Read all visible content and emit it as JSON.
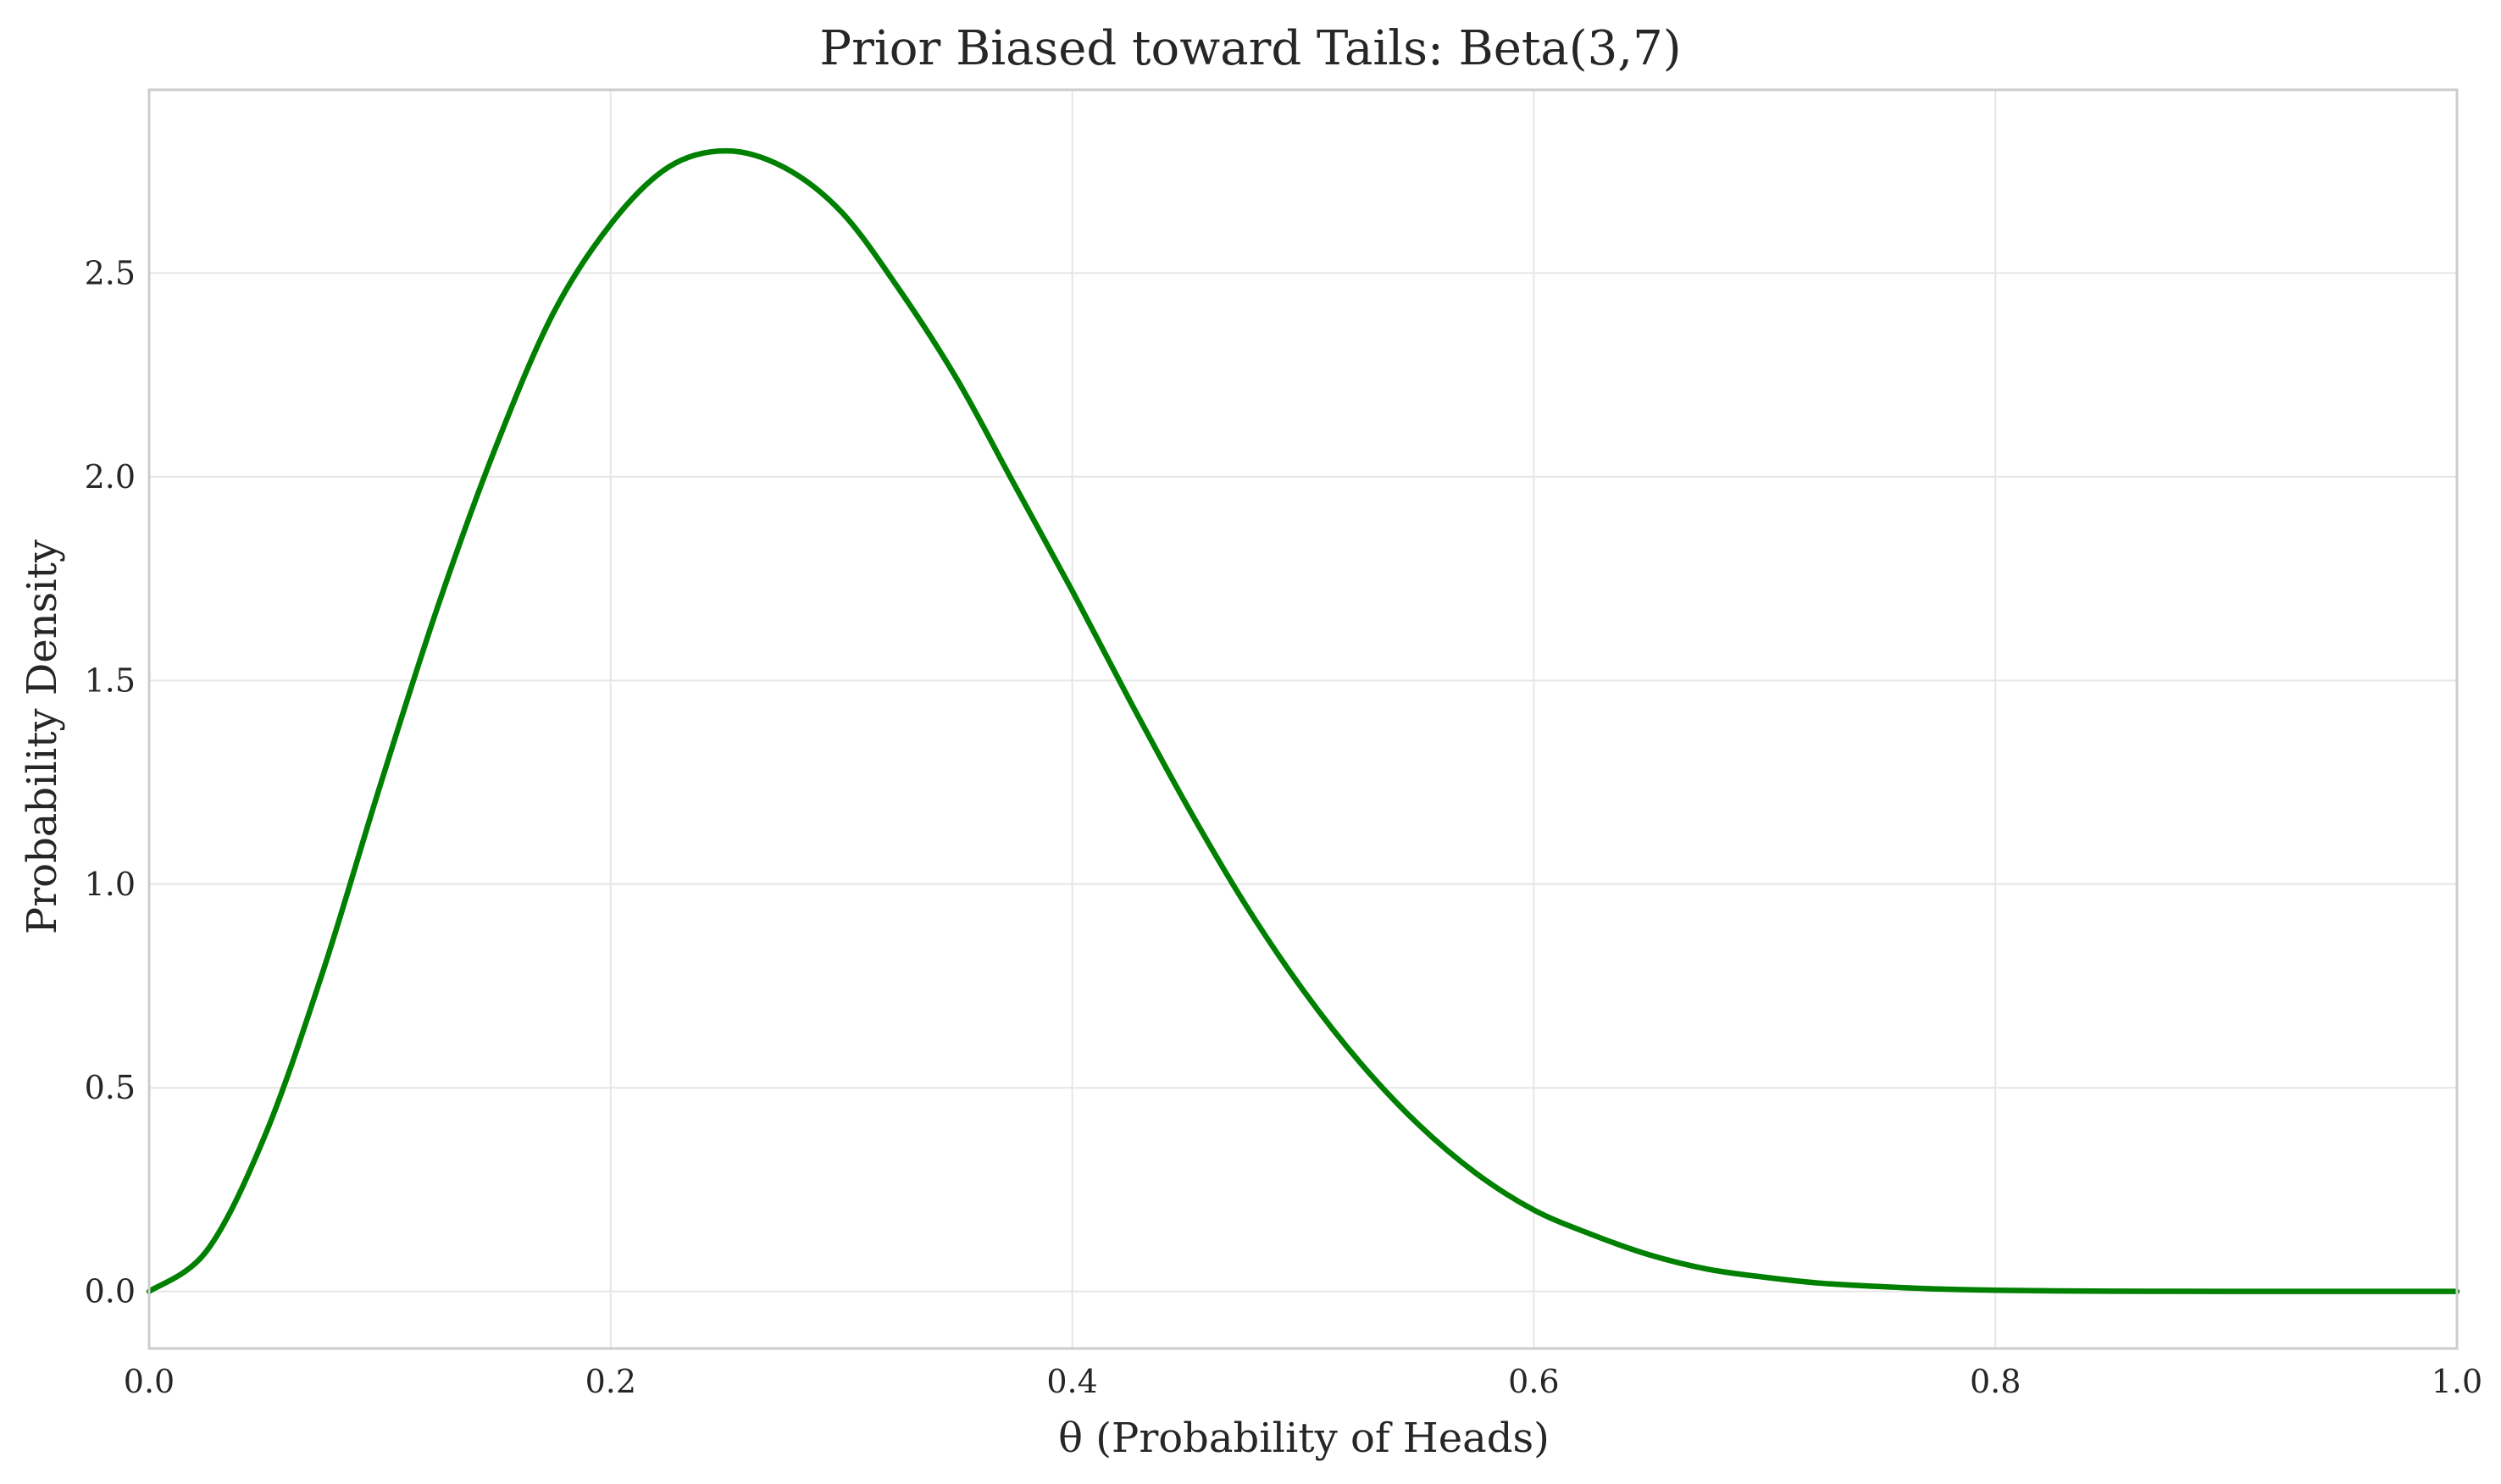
{
  "chart_data": {
    "type": "line",
    "title": "Prior Biased toward Tails: Beta(3,7)",
    "xlabel": "θ (Probability of Heads)",
    "ylabel": "Probability Density",
    "xlim": [
      0.0,
      1.0
    ],
    "ylim": [
      -0.14,
      2.95
    ],
    "x_ticks": [
      0.0,
      0.2,
      0.4,
      0.6,
      0.8,
      1.0
    ],
    "x_tick_labels": [
      "0.0",
      "0.2",
      "0.4",
      "0.6",
      "0.8",
      "1.0"
    ],
    "y_ticks": [
      0.0,
      0.5,
      1.0,
      1.5,
      2.0,
      2.5
    ],
    "y_tick_labels": [
      "0.0",
      "0.5",
      "1.0",
      "1.5",
      "2.0",
      "2.5"
    ],
    "grid": true,
    "legend": "none",
    "series": [
      {
        "color": "#008000",
        "x": [
          0.0,
          0.025,
          0.05,
          0.075,
          0.1,
          0.125,
          0.15,
          0.175,
          0.2,
          0.225,
          0.25,
          0.275,
          0.3,
          0.325,
          0.35,
          0.375,
          0.4,
          0.425,
          0.45,
          0.475,
          0.5,
          0.525,
          0.55,
          0.575,
          0.6,
          0.625,
          0.65,
          0.675,
          0.7,
          0.725,
          0.75,
          0.775,
          0.8,
          0.825,
          0.85,
          0.875,
          0.9,
          0.925,
          0.95,
          0.975,
          1.0
        ],
        "y": [
          0.0,
          0.1,
          0.38,
          0.78,
          1.24,
          1.68,
          2.07,
          2.4,
          2.62,
          2.76,
          2.8,
          2.76,
          2.65,
          2.46,
          2.24,
          1.98,
          1.72,
          1.45,
          1.19,
          0.95,
          0.74,
          0.56,
          0.41,
          0.29,
          0.2,
          0.14,
          0.09,
          0.055,
          0.035,
          0.02,
          0.012,
          0.006,
          0.003,
          0.0015,
          0.0007,
          0.0003,
          0.0001,
          0.0,
          0.0,
          0.0,
          0.0
        ]
      }
    ]
  }
}
